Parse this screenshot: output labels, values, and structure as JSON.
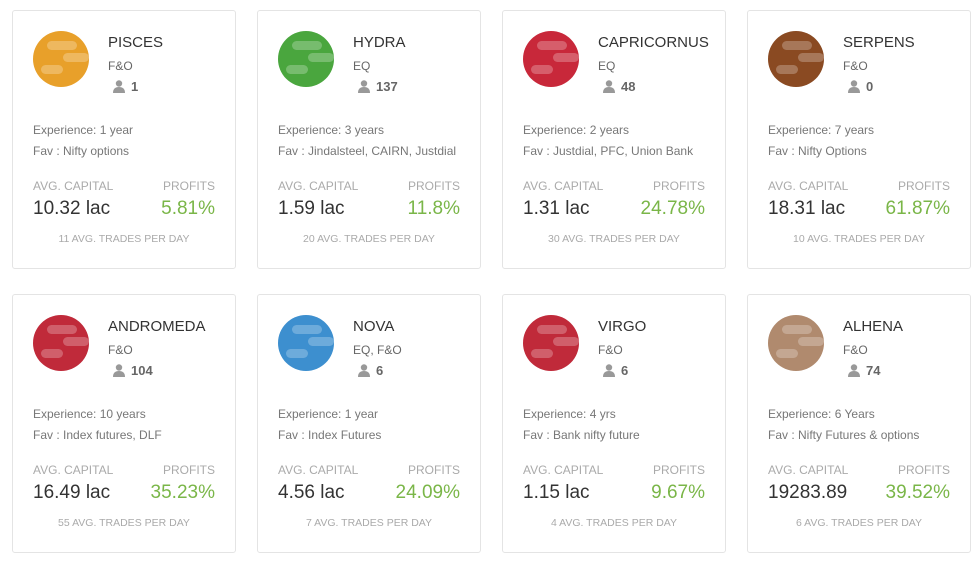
{
  "labels": {
    "capital": "AVG. CAPITAL",
    "profits": "PROFITS"
  },
  "cards": [
    {
      "name": "PISCES",
      "segment": "F&O",
      "followers": "1",
      "experience": "Experience: 1 year",
      "fav": "Fav : Nifty options",
      "capital": "10.32 lac",
      "profits": "5.81%",
      "trades": "11 AVG. TRADES PER DAY",
      "color": "#e8a02a"
    },
    {
      "name": "HYDRA",
      "segment": "EQ",
      "followers": "137",
      "experience": "Experience: 3 years",
      "fav": "Fav : Jindalsteel, CAIRN, Justdial",
      "capital": "1.59 lac",
      "profits": "11.8%",
      "trades": "20 AVG. TRADES PER DAY",
      "color": "#4aa63e"
    },
    {
      "name": "CAPRICORNUS",
      "segment": "EQ",
      "followers": "48",
      "experience": "Experience: 2 years",
      "fav": "Fav : Justdial, PFC, Union Bank",
      "capital": "1.31 lac",
      "profits": "24.78%",
      "trades": "30 AVG. TRADES PER DAY",
      "color": "#c8283a"
    },
    {
      "name": "SERPENS",
      "segment": "F&O",
      "followers": "0",
      "experience": "Experience: 7 years",
      "fav": "Fav : Nifty Options",
      "capital": "18.31 lac",
      "profits": "61.87%",
      "trades": "10 AVG. TRADES PER DAY",
      "color": "#8a4a22"
    },
    {
      "name": "ANDROMEDA",
      "segment": "F&O",
      "followers": "104",
      "experience": "Experience: 10 years",
      "fav": "Fav : Index futures, DLF",
      "capital": "16.49 lac",
      "profits": "35.23%",
      "trades": "55 AVG. TRADES PER DAY",
      "color": "#c02a3a"
    },
    {
      "name": "NOVA",
      "segment": "EQ, F&O",
      "followers": "6",
      "experience": "Experience: 1 year",
      "fav": "Fav : Index Futures",
      "capital": "4.56 lac",
      "profits": "24.09%",
      "trades": "7 AVG. TRADES PER DAY",
      "color": "#3d8fcf"
    },
    {
      "name": "VIRGO",
      "segment": "F&O",
      "followers": "6",
      "experience": "Experience: 4 yrs",
      "fav": "Fav : Bank nifty future",
      "capital": "1.15 lac",
      "profits": "9.67%",
      "trades": "4 AVG. TRADES PER DAY",
      "color": "#c02a3a"
    },
    {
      "name": "ALHENA",
      "segment": "F&O",
      "followers": "74",
      "experience": "Experience: 6 Years",
      "fav": "Fav : Nifty Futures & options",
      "capital": "19283.89",
      "profits": "39.52%",
      "trades": "6 AVG. TRADES PER DAY",
      "color": "#b08a6e"
    }
  ]
}
